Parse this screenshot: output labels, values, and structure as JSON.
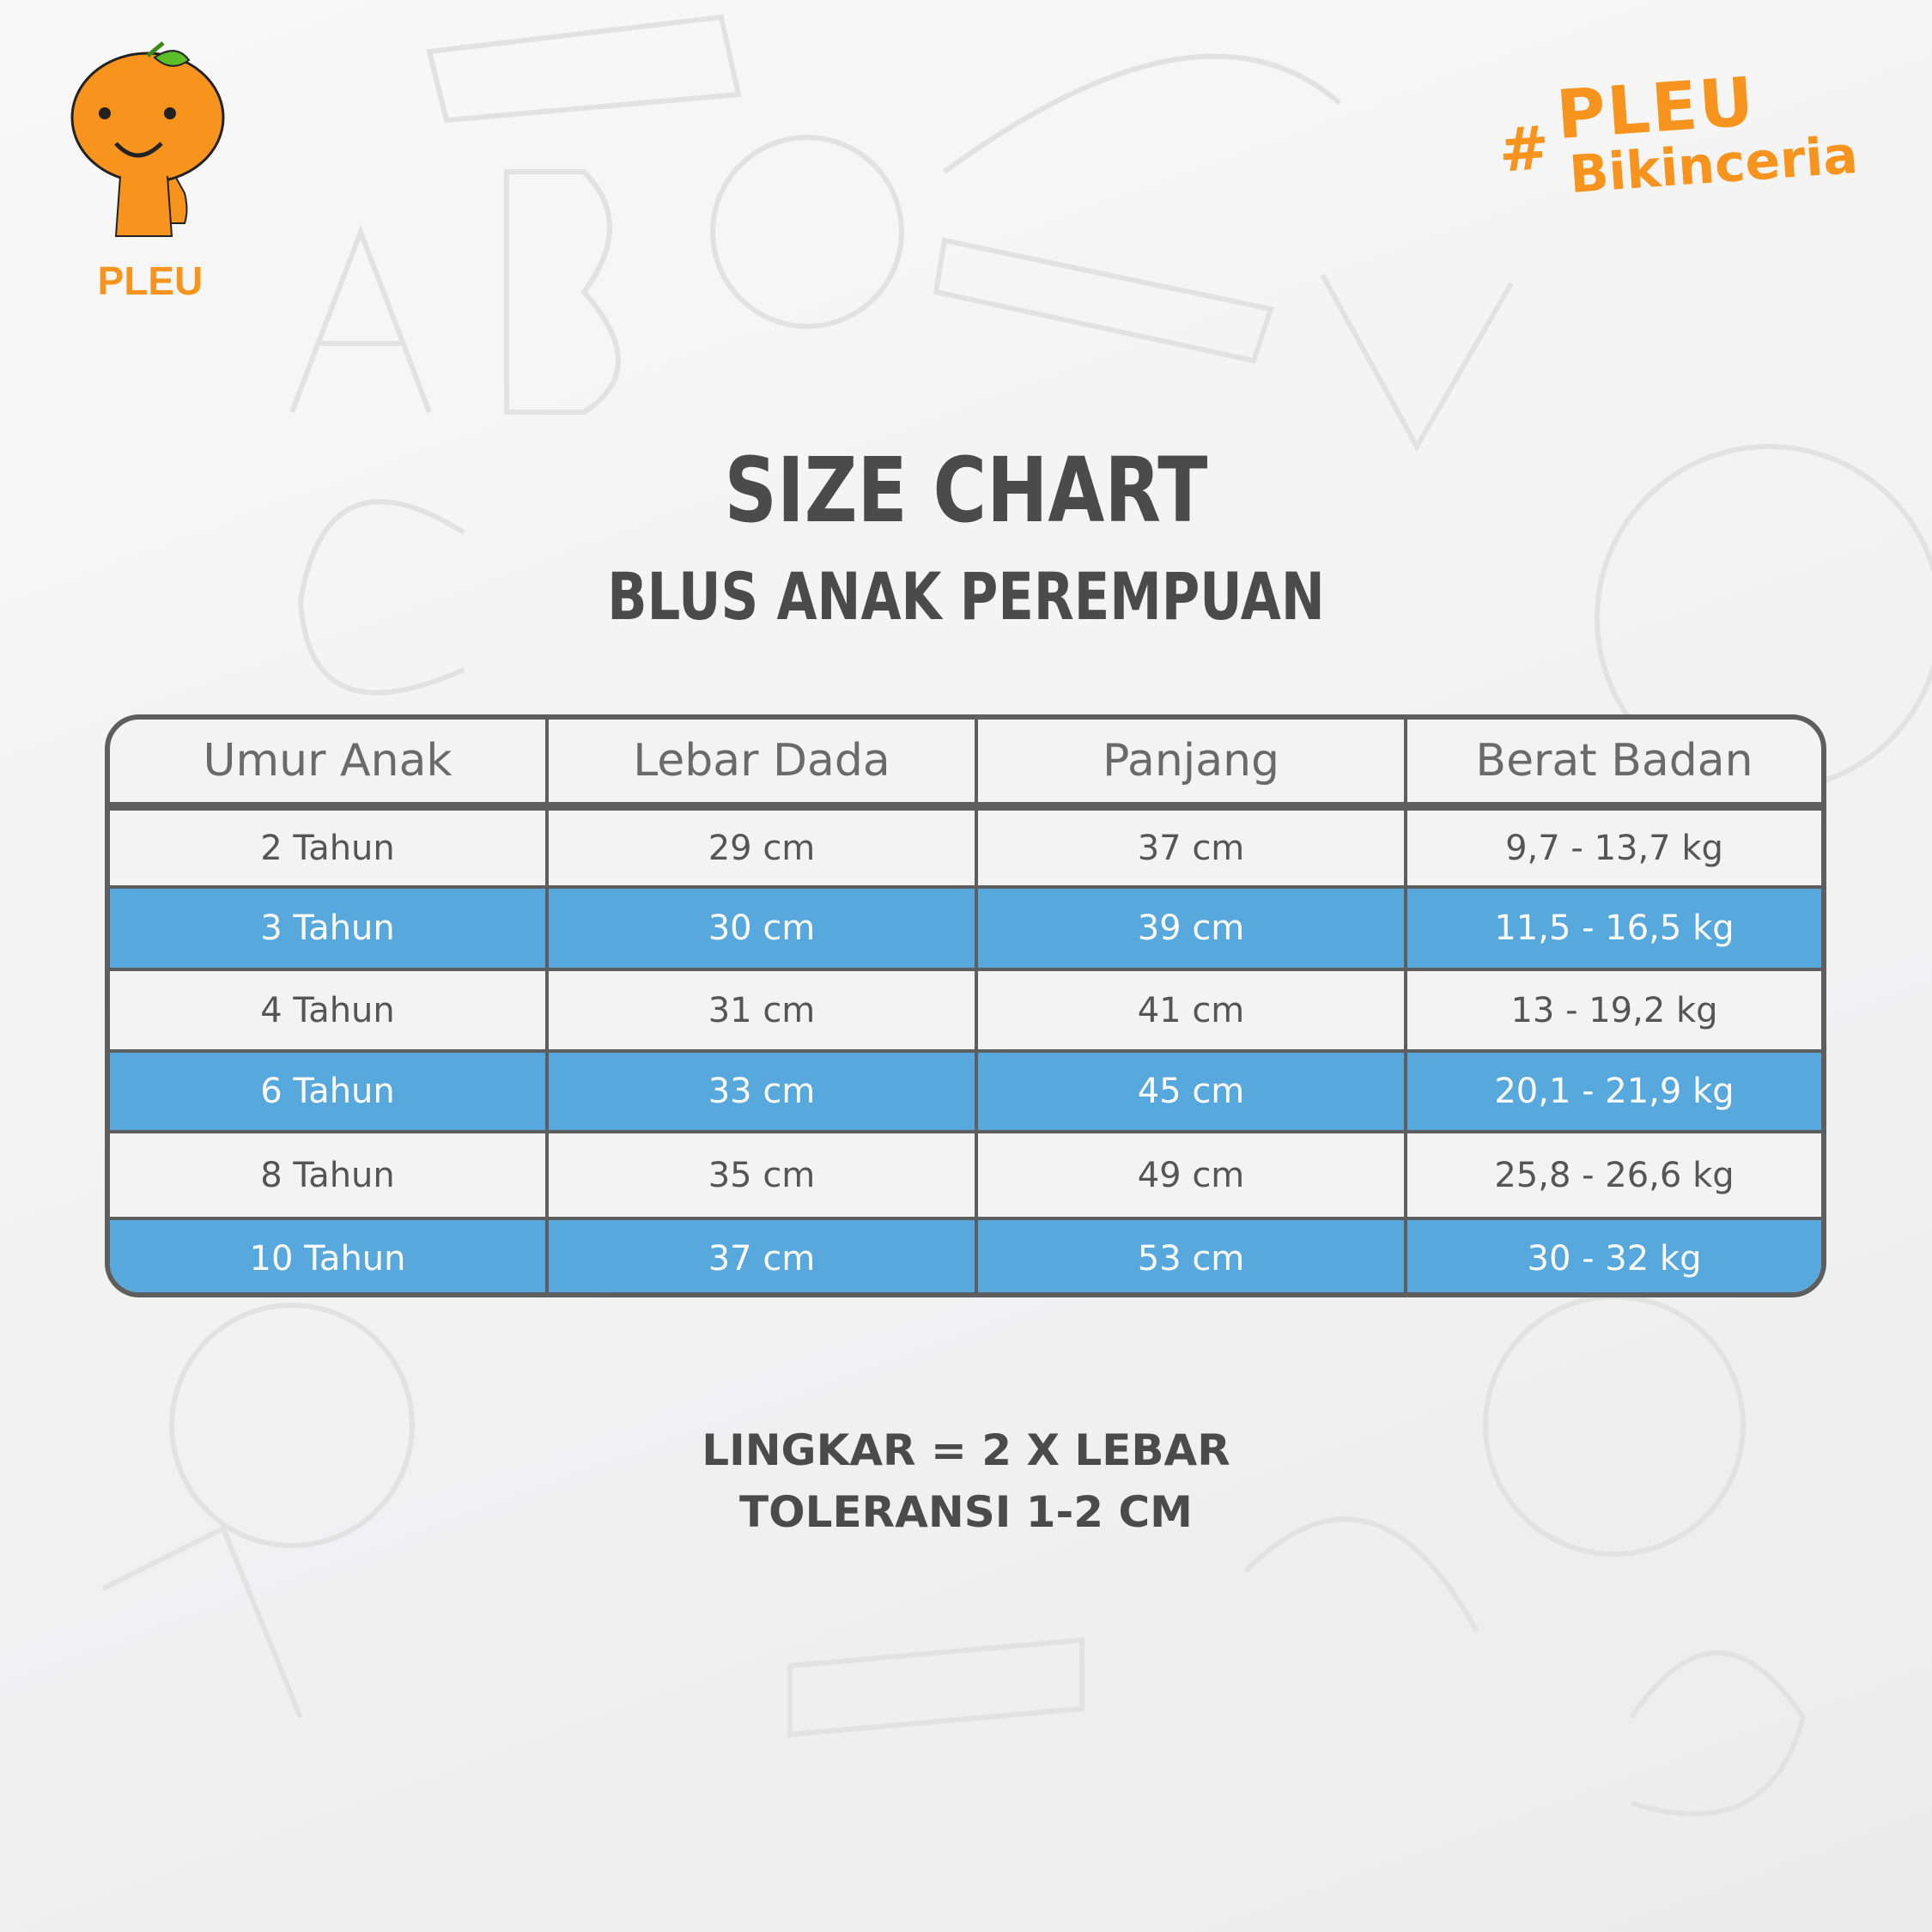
{
  "brand": {
    "logo_text": "PLEU",
    "hashtag_symbol": "#",
    "hashtag_line1": "PLEU",
    "hashtag_line2": "Bikinceria",
    "color": "#f7941d"
  },
  "title": "SIZE CHART",
  "subtitle": "BLUS ANAK PEREMPUAN",
  "table": {
    "headers": [
      "Umur Anak",
      "Lebar Dada",
      "Panjang",
      "Berat Badan"
    ],
    "rows": [
      [
        "2 Tahun",
        "29 cm",
        "37 cm",
        "9,7 - 13,7 kg"
      ],
      [
        "3 Tahun",
        "30 cm",
        "39 cm",
        "11,5 - 16,5 kg"
      ],
      [
        "4 Tahun",
        "31 cm",
        "41 cm",
        "13 - 19,2 kg"
      ],
      [
        "6 Tahun",
        "33 cm",
        "45 cm",
        "20,1 - 21,9 kg"
      ],
      [
        "8 Tahun",
        "35 cm",
        "49 cm",
        "25,8 - 26,6 kg"
      ],
      [
        "10 Tahun",
        "37 cm",
        "53 cm",
        "30 - 32 kg"
      ]
    ],
    "highlight_color": "#57a8dc"
  },
  "notes": [
    "LINGKAR = 2 X LEBAR",
    "TOLERANSI 1-2 CM"
  ]
}
